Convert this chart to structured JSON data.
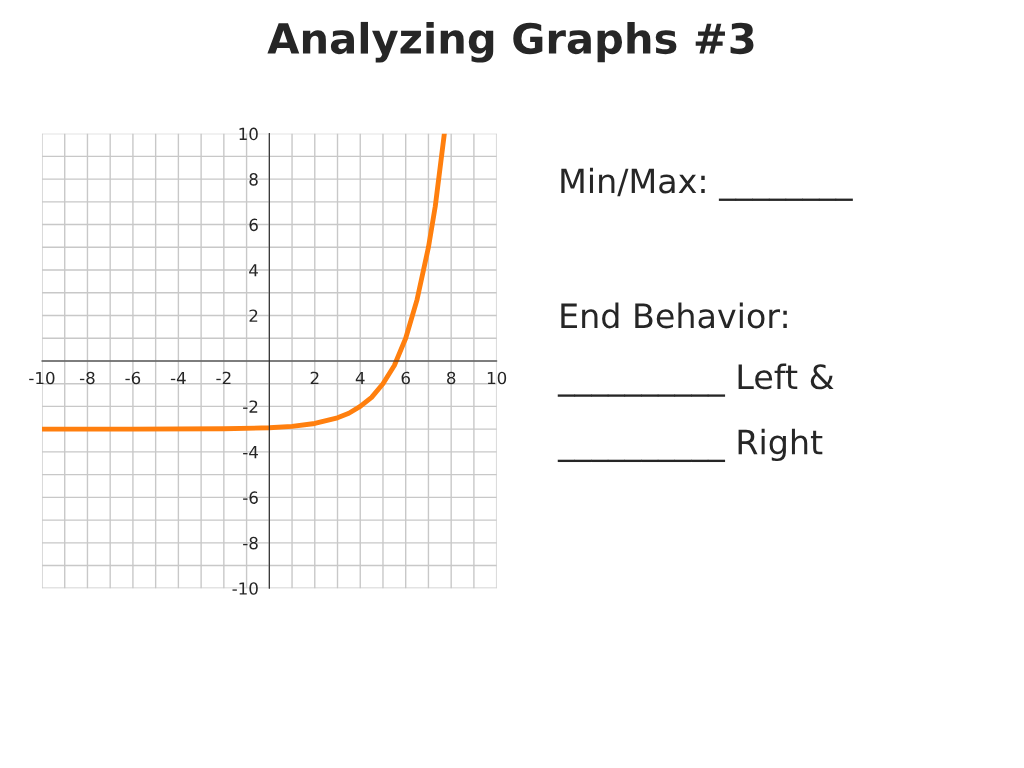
{
  "chart_data": {
    "type": "line",
    "title": "Analyzing Graphs #3",
    "annotations": [
      "Min/Max: ________",
      "End Behavior:",
      "__________ Left &",
      "__________ Right"
    ],
    "x": [
      -10,
      -6,
      -2,
      0,
      1,
      2,
      3,
      3.5,
      4,
      4.5,
      5,
      5.5,
      6,
      6.5,
      7,
      7.3,
      7.7
    ],
    "series": [
      {
        "color": "#ff7f0e",
        "values": [
          -3.0,
          -3.0,
          -2.98,
          -2.94,
          -2.88,
          -2.75,
          -2.5,
          -2.3,
          -2.0,
          -1.6,
          -1.0,
          -0.2,
          1.0,
          2.7,
          5.0,
          6.8,
          10.0
        ]
      }
    ],
    "xlim": [
      -10,
      10
    ],
    "ylim": [
      -10,
      10
    ],
    "xticks": [
      -10,
      -8,
      -6,
      -4,
      -2,
      2,
      4,
      6,
      8,
      10
    ],
    "yticks": [
      -10,
      -8,
      -6,
      -4,
      -2,
      2,
      4,
      6,
      8,
      10
    ],
    "grid": true,
    "marker": "none",
    "line_style": "solid"
  }
}
